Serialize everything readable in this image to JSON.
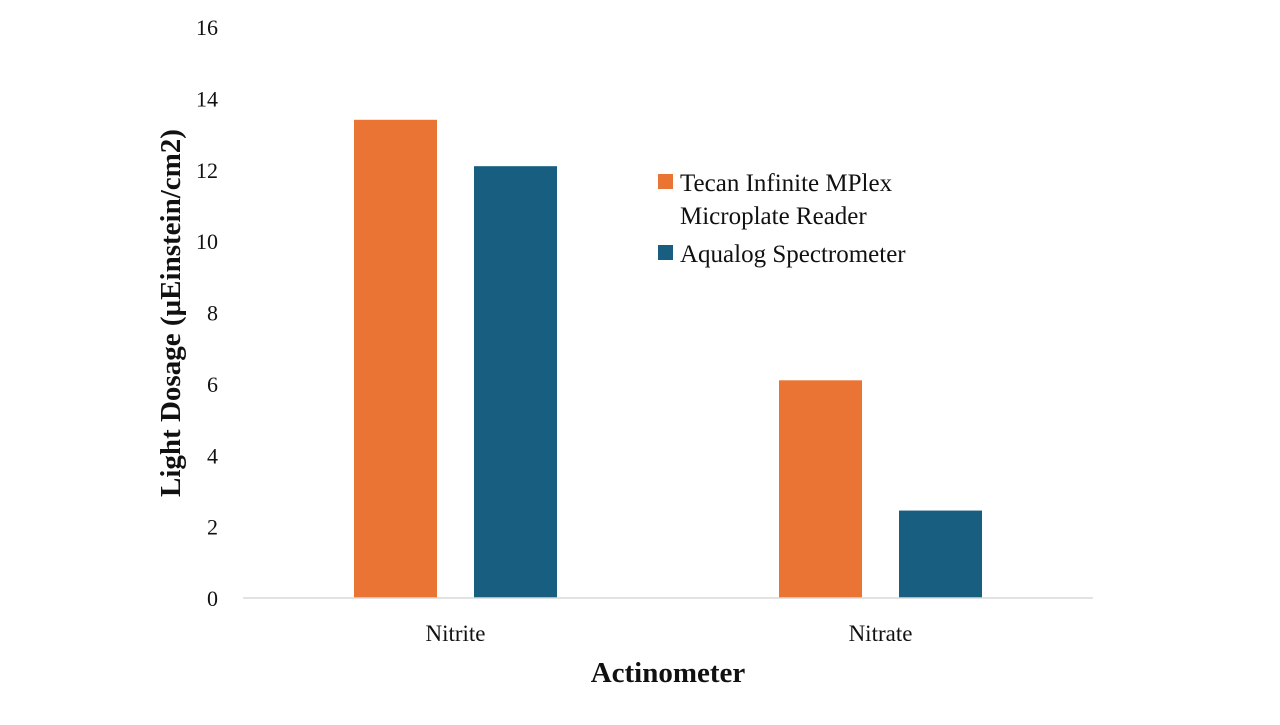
{
  "chart_data": {
    "type": "bar",
    "title": "",
    "xlabel": "Actinometer",
    "ylabel": "Light Dosage (µEinstein/cm2)",
    "categories": [
      "Nitrite",
      "Nitrate"
    ],
    "ylim": [
      0,
      16
    ],
    "yticks": [
      "0",
      "2",
      "4",
      "6",
      "8",
      "10",
      "12",
      "14",
      "16"
    ],
    "grid": false,
    "legend_position": "right",
    "series": [
      {
        "name": "Tecan Infinite MPlex Microplate Reader",
        "legend_lines": [
          "Tecan Infinite MPlex",
          "Microplate Reader"
        ],
        "color": "#E97434",
        "values": [
          13.4,
          6.1
        ]
      },
      {
        "name": "Aqualog Spectrometer",
        "legend_lines": [
          "Aqualog Spectrometer"
        ],
        "color": "#175E80",
        "values": [
          12.1,
          2.45
        ]
      }
    ]
  }
}
